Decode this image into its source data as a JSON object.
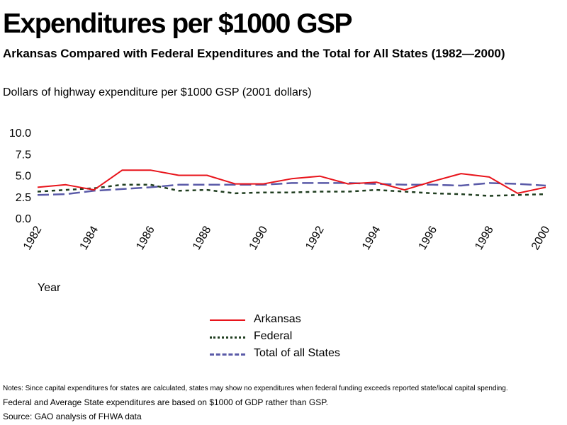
{
  "header": {
    "title": "Expenditures per $1000 GSP",
    "subtitle": "Arkansas Compared with Federal Expenditures and the Total for All States (1982—2000)"
  },
  "axis_titles": {
    "y": "Dollars of highway expenditure per $1000 GSP (2001 dollars)",
    "x": "Year"
  },
  "legend": [
    {
      "label": "Arkansas",
      "color": "#e8141b",
      "style": "solid"
    },
    {
      "label": "Federal",
      "color": "#1f3d1f",
      "style": "dotted"
    },
    {
      "label": "Total of all States",
      "color": "#5a5aa8",
      "style": "dashed"
    }
  ],
  "footer": {
    "notes": "Notes: Since capital expenditures for states are calculated, states may show no expenditures when federal funding exceeds reported state/local capital spending.",
    "note2": "Federal and Average State expenditures are based on $1000 of GDP rather than GSP.",
    "source": "Source: GAO analysis of FHWA data"
  },
  "chart_data": {
    "type": "line",
    "title": "Expenditures per $1000 GSP",
    "subtitle": "Arkansas Compared with Federal Expenditures and the Total for All States (1982—2000)",
    "ylabel": "Dollars of highway expenditure per $1000 GSP (2001 dollars)",
    "xlabel": "Year",
    "ylim": [
      0,
      10
    ],
    "yticks": [
      "0.0",
      "2.5",
      "5.0",
      "7.5",
      "10.0"
    ],
    "x": [
      1982,
      1983,
      1984,
      1985,
      1986,
      1987,
      1988,
      1989,
      1990,
      1991,
      1992,
      1993,
      1994,
      1995,
      1996,
      1997,
      1998,
      1999,
      2000
    ],
    "xtick_labels": [
      "1982",
      "1984",
      "1986",
      "1988",
      "1990",
      "1992",
      "1994",
      "1996",
      "1998",
      "2000"
    ],
    "grid": false,
    "legend_position": "bottom-center",
    "series": [
      {
        "name": "Arkansas",
        "color": "#e8141b",
        "style": "solid",
        "values": [
          3.6,
          3.9,
          3.3,
          5.6,
          5.6,
          5.0,
          5.0,
          4.0,
          4.0,
          4.6,
          4.9,
          4.0,
          4.2,
          3.3,
          4.3,
          5.2,
          4.8,
          2.9,
          3.6
        ]
      },
      {
        "name": "Federal",
        "color": "#1f3d1f",
        "style": "dotted",
        "values": [
          3.1,
          3.3,
          3.5,
          3.9,
          3.9,
          3.2,
          3.3,
          2.9,
          3.0,
          3.0,
          3.1,
          3.1,
          3.3,
          3.1,
          2.9,
          2.8,
          2.6,
          2.7,
          2.8
        ]
      },
      {
        "name": "Total of all States",
        "color": "#5a5aa8",
        "style": "dashed",
        "values": [
          2.7,
          2.8,
          3.2,
          3.4,
          3.6,
          3.9,
          3.9,
          3.9,
          3.9,
          4.1,
          4.1,
          4.1,
          4.0,
          3.9,
          3.9,
          3.8,
          4.1,
          4.0,
          3.8
        ]
      }
    ]
  }
}
